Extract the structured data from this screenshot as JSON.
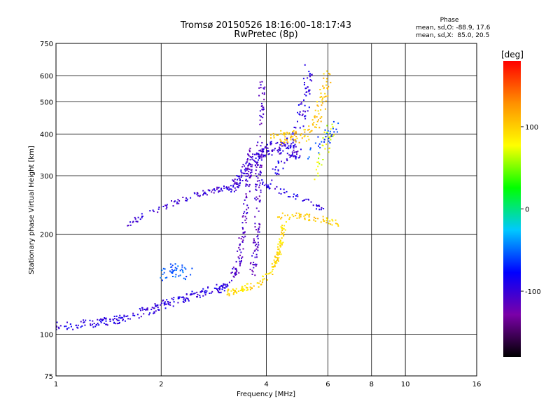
{
  "chart_data": {
    "type": "scatter",
    "title": "Tromsø 20150526 18:16:00–18:17:43",
    "subtitle": "RwPretec (8p)",
    "xlabel": "Frequency [MHz]",
    "ylabel": "Stationary phase Virtual Height [km]",
    "x_scale": "log",
    "y_scale": "log",
    "xlim": [
      1,
      16
    ],
    "ylim": [
      75,
      750
    ],
    "x_ticks": [
      1,
      2,
      4,
      6,
      8,
      10,
      16
    ],
    "y_ticks": [
      75,
      100,
      200,
      300,
      400,
      500,
      600,
      750
    ],
    "grid": true,
    "info": {
      "heading": "Phase",
      "line_o": "mean, sd,O: -88.9, 17.6",
      "line_x": "mean, sd,X:  85.0, 20.5"
    },
    "colorbar": {
      "label": "[deg]",
      "range": [
        -180,
        180
      ],
      "ticks": [
        100,
        0,
        -100
      ],
      "colors": [
        "#000000",
        "#7a00a8",
        "#0000ff",
        "#00c8ff",
        "#00ff00",
        "#ffff00",
        "#ff9000",
        "#ff0000"
      ]
    },
    "traces": [
      {
        "name_hidden": "low-o",
        "phase": -95,
        "pts": [
          [
            1.0,
            106
          ],
          [
            1.2,
            107
          ],
          [
            1.4,
            109
          ],
          [
            1.6,
            112
          ],
          [
            1.8,
            117
          ],
          [
            2.0,
            122
          ],
          [
            2.3,
            128
          ],
          [
            2.6,
            133
          ],
          [
            2.9,
            137
          ],
          [
            3.1,
            140
          ]
        ],
        "spread": 0.02,
        "n": 240
      },
      {
        "phase": -55,
        "pts": [
          [
            2.0,
            150
          ],
          [
            2.2,
            157
          ],
          [
            2.4,
            152
          ]
        ],
        "spread": 0.03,
        "n": 45
      },
      {
        "phase": -100,
        "pts": [
          [
            1.55,
            212
          ],
          [
            1.8,
            228
          ],
          [
            2.1,
            245
          ],
          [
            2.5,
            262
          ],
          [
            2.9,
            272
          ],
          [
            3.2,
            276
          ]
        ],
        "spread": 0.012,
        "n": 90
      },
      {
        "phase": -100,
        "pts": [
          [
            3.15,
            270
          ],
          [
            3.4,
            300
          ],
          [
            3.7,
            340
          ],
          [
            4.1,
            365
          ],
          [
            4.6,
            360
          ],
          [
            5.0,
            350
          ]
        ],
        "spread": 0.03,
        "n": 180
      },
      {
        "phase": -110,
        "pts": [
          [
            3.2,
            145
          ],
          [
            3.35,
            170
          ],
          [
            3.45,
            210
          ],
          [
            3.55,
            280
          ],
          [
            3.6,
            360
          ]
        ],
        "spread": 0.02,
        "n": 120
      },
      {
        "phase": -110,
        "pts": [
          [
            3.65,
            150
          ],
          [
            3.75,
            200
          ],
          [
            3.8,
            300
          ],
          [
            3.85,
            420
          ],
          [
            3.9,
            580
          ]
        ],
        "spread": 0.02,
        "n": 130
      },
      {
        "phase": -95,
        "pts": [
          [
            4.2,
            300
          ],
          [
            4.6,
            360
          ],
          [
            5.0,
            430
          ],
          [
            5.2,
            520
          ],
          [
            5.3,
            620
          ]
        ],
        "spread": 0.03,
        "n": 90
      },
      {
        "phase": -95,
        "pts": [
          [
            3.8,
            290
          ],
          [
            4.2,
            275
          ],
          [
            4.8,
            260
          ],
          [
            5.3,
            250
          ],
          [
            5.8,
            240
          ]
        ],
        "spread": 0.015,
        "n": 50
      },
      {
        "phase": 95,
        "pts": [
          [
            3.1,
            133
          ],
          [
            3.4,
            137
          ],
          [
            3.8,
            142
          ],
          [
            4.1,
            152
          ],
          [
            4.3,
            170
          ],
          [
            4.4,
            190
          ],
          [
            4.5,
            215
          ]
        ],
        "spread": 0.015,
        "n": 140
      },
      {
        "phase": 100,
        "pts": [
          [
            4.3,
            225
          ],
          [
            4.8,
            228
          ],
          [
            5.2,
            225
          ],
          [
            5.7,
            222
          ],
          [
            6.0,
            220
          ],
          [
            6.5,
            215
          ]
        ],
        "spread": 0.015,
        "n": 60
      },
      {
        "phase": 105,
        "pts": [
          [
            4.2,
            380
          ],
          [
            4.6,
            400
          ],
          [
            5.0,
            390
          ],
          [
            5.5,
            430
          ],
          [
            5.8,
            500
          ],
          [
            6.0,
            620
          ]
        ],
        "spread": 0.03,
        "n": 120
      },
      {
        "phase": 70,
        "pts": [
          [
            5.6,
            300
          ],
          [
            5.8,
            350
          ],
          [
            6.0,
            400
          ],
          [
            6.3,
            420
          ]
        ],
        "spread": 0.03,
        "n": 40
      },
      {
        "phase": -60,
        "pts": [
          [
            5.4,
            350
          ],
          [
            5.6,
            380
          ],
          [
            6.1,
            400
          ],
          [
            6.4,
            420
          ]
        ],
        "spread": 0.03,
        "n": 30
      }
    ]
  }
}
